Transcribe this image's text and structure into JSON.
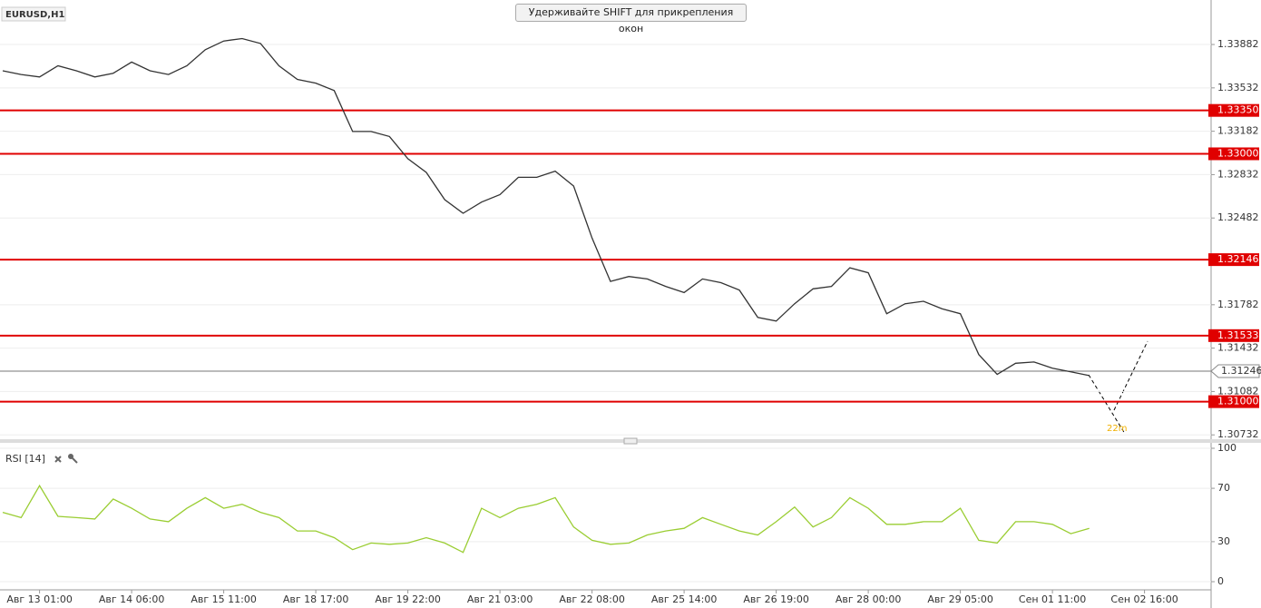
{
  "hint": "Удерживайте SHIFT для прикрепления окон",
  "chart_data": [
    {
      "type": "line",
      "title": "EURUSD,H1",
      "color": "#333333",
      "grid": true,
      "categories": [
        null,
        null,
        "Авг 13 01:00",
        null,
        null,
        null,
        null,
        "Авг 14 06:00",
        null,
        null,
        null,
        null,
        "Авг 15 11:00",
        null,
        null,
        null,
        null,
        "Авг 18 17:00",
        null,
        null,
        null,
        null,
        "Авг 19 22:00",
        null,
        null,
        null,
        null,
        "Авг 21 03:00",
        null,
        null,
        null,
        null,
        "Авг 22 08:00",
        null,
        null,
        null,
        null,
        "Авг 25 14:00",
        null,
        null,
        null,
        null,
        "Авг 26 19:00",
        null,
        null,
        null,
        null,
        "Авг 28 00:00",
        null,
        null,
        null,
        null,
        "Авг 29 05:00",
        null,
        null,
        null,
        null,
        "Сен 01 11:00",
        null,
        null,
        null,
        null,
        "Сен 02 16:00"
      ],
      "values": [
        1.3367,
        1.3364,
        1.3362,
        1.3371,
        1.3367,
        1.3362,
        1.3365,
        1.3374,
        1.3367,
        1.3364,
        1.3371,
        1.3384,
        1.3391,
        1.3393,
        1.3389,
        1.3371,
        1.336,
        1.3357,
        1.3351,
        1.3318,
        1.3318,
        1.3314,
        1.3296,
        1.3285,
        1.3263,
        1.3252,
        1.3261,
        1.3267,
        1.3281,
        1.3281,
        1.3286,
        1.3274,
        1.3232,
        1.3197,
        1.3201,
        1.3199,
        1.3193,
        1.3188,
        1.3199,
        1.3196,
        1.319,
        1.3168,
        1.3165,
        1.3179,
        1.3191,
        1.3193,
        1.3208,
        1.3204,
        1.3171,
        1.3179,
        1.3181,
        1.3175,
        1.3171,
        1.3138,
        1.3122,
        1.3131,
        1.3132,
        1.3127,
        1.3124,
        1.3121,
        null,
        null,
        null
      ],
      "ylim": [
        1.30697,
        1.34241
      ],
      "yticks": [
        {
          "value": 1.33882,
          "label": "1.33882"
        },
        {
          "value": 1.33532,
          "label": "1.33532"
        },
        {
          "value": 1.33182,
          "label": "1.33182"
        },
        {
          "value": 1.32832,
          "label": "1.32832"
        },
        {
          "value": 1.32482,
          "label": "1.32482"
        },
        {
          "value": 1.31782,
          "label": "1.31782"
        },
        {
          "value": 1.31432,
          "label": "1.31432"
        },
        {
          "value": 1.31082,
          "label": "1.31082"
        },
        {
          "value": 1.30732,
          "label": "1.30732"
        }
      ],
      "level_color": "#e00000",
      "levels": [
        {
          "value": 1.3335,
          "label": "1.33350"
        },
        {
          "value": 1.33,
          "label": "1.33000"
        },
        {
          "value": 1.32146,
          "label": "1.32146"
        },
        {
          "value": 1.31533,
          "label": "1.31533"
        },
        {
          "value": 1.31,
          "label": "1.31000"
        }
      ],
      "last": {
        "value": 1.31246,
        "label": "1.31246"
      },
      "annotation": "22m"
    },
    {
      "type": "line",
      "title": "RSI [14]",
      "color": "#9acd32",
      "grid": true,
      "values": [
        52,
        48,
        72,
        49,
        48,
        47,
        62,
        55,
        47,
        45,
        55,
        63,
        55,
        58,
        52,
        48,
        38,
        38,
        33,
        24,
        29,
        28,
        29,
        33,
        29,
        22,
        55,
        48,
        55,
        58,
        63,
        41,
        31,
        28,
        29,
        35,
        38,
        40,
        48,
        43,
        38,
        35,
        45,
        56,
        41,
        48,
        63,
        55,
        43,
        43,
        45,
        45,
        55,
        31,
        29,
        45,
        45,
        43,
        36,
        40,
        null,
        null,
        null
      ],
      "ylim": [
        0,
        100
      ],
      "yticks": [
        0,
        30,
        70,
        100
      ]
    }
  ]
}
